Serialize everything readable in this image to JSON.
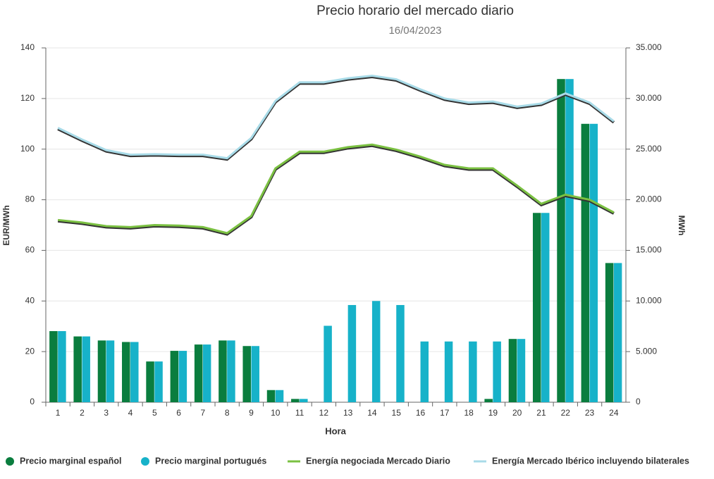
{
  "chart_data": {
    "type": "bar",
    "title": "Precio horario del mercado diario",
    "subtitle": "16/04/2023",
    "x_label": "Hora",
    "y_label": "EUR/MWh",
    "y2_label": "MWh",
    "categories": [
      "1",
      "2",
      "3",
      "4",
      "5",
      "6",
      "7",
      "8",
      "9",
      "10",
      "11",
      "12",
      "13",
      "14",
      "15",
      "16",
      "17",
      "18",
      "19",
      "20",
      "21",
      "22",
      "23",
      "24"
    ],
    "series": [
      {
        "name": "Precio marginal español",
        "type": "bar",
        "color": "#0a7d3e",
        "values": [
          28.1,
          26,
          24.4,
          23.8,
          16.1,
          20.3,
          22.8,
          24.4,
          22.2,
          4.8,
          1.3,
          0,
          0,
          0,
          0,
          0,
          0,
          0,
          1.3,
          25,
          74.8,
          127.7,
          110,
          55
        ]
      },
      {
        "name": "Precio marginal portugués",
        "type": "bar",
        "color": "#17b2c9",
        "values": [
          28.1,
          26,
          24.4,
          23.8,
          16.1,
          20.3,
          22.8,
          24.4,
          22.2,
          4.8,
          1.3,
          30.2,
          38.4,
          40,
          38.4,
          24,
          24,
          24,
          24,
          25,
          74.8,
          127.7,
          110,
          55
        ]
      },
      {
        "name": "Energía negociada Mercado Diario",
        "type": "line",
        "axis": "y2",
        "color": "#7bc142",
        "values": [
          18000,
          17750,
          17400,
          17300,
          17500,
          17450,
          17300,
          16700,
          18400,
          23100,
          24750,
          24750,
          25200,
          25450,
          24950,
          24250,
          23450,
          23100,
          23100,
          21400,
          19600,
          20500,
          20000,
          18750
        ]
      },
      {
        "name": "Energía Mercado Ibérico incluyendo bilaterales",
        "type": "line",
        "axis": "y2",
        "color": "#a8dbe8",
        "values": [
          27100,
          25950,
          24900,
          24450,
          24500,
          24450,
          24450,
          24100,
          26100,
          29750,
          31600,
          31600,
          32000,
          32250,
          31900,
          30900,
          30000,
          29600,
          29700,
          29200,
          29500,
          30500,
          29600,
          27750
        ]
      }
    ],
    "ylim": [
      0,
      140
    ],
    "yticks": [
      0,
      20,
      40,
      60,
      80,
      100,
      120,
      140
    ],
    "y2lim": [
      0,
      35000
    ],
    "y2ticks": [
      0,
      {
        "value": 5000,
        "label": "5.000"
      },
      {
        "value": 10000,
        "label": "10.000"
      },
      {
        "value": 15000,
        "label": "15.000"
      },
      {
        "value": 20000,
        "label": "20.000"
      },
      {
        "value": 25000,
        "label": "25.000"
      },
      {
        "value": 30000,
        "label": "30.000"
      },
      {
        "value": 35000,
        "label": "35.000"
      }
    ],
    "grid": true,
    "legend": "bottom"
  }
}
